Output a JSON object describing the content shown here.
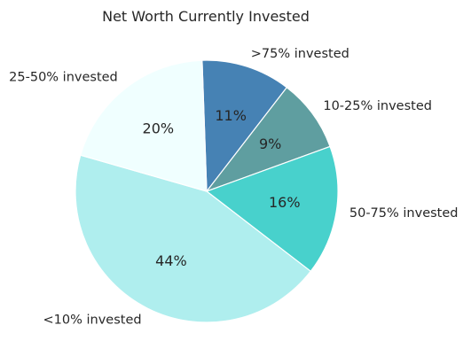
{
  "chart_data": {
    "type": "pie",
    "title": "Net Worth Currently Invested",
    "slices": [
      {
        "label": ">75% invested",
        "value": 11,
        "pct_label": "11%",
        "color": "#4682B4"
      },
      {
        "label": "10-25% invested",
        "value": 9,
        "pct_label": "9%",
        "color": "#5F9EA0"
      },
      {
        "label": "50-75% invested",
        "value": 16,
        "pct_label": "16%",
        "color": "#48D1CC"
      },
      {
        "label": "<10% invested",
        "value": 44,
        "pct_label": "44%",
        "color": "#AFEEEE"
      },
      {
        "label": "25-50% invested",
        "value": 20,
        "pct_label": "20%",
        "color": "#F0FFFF"
      }
    ],
    "start_angle_deg": 92,
    "direction": "clockwise",
    "legend": "none"
  }
}
